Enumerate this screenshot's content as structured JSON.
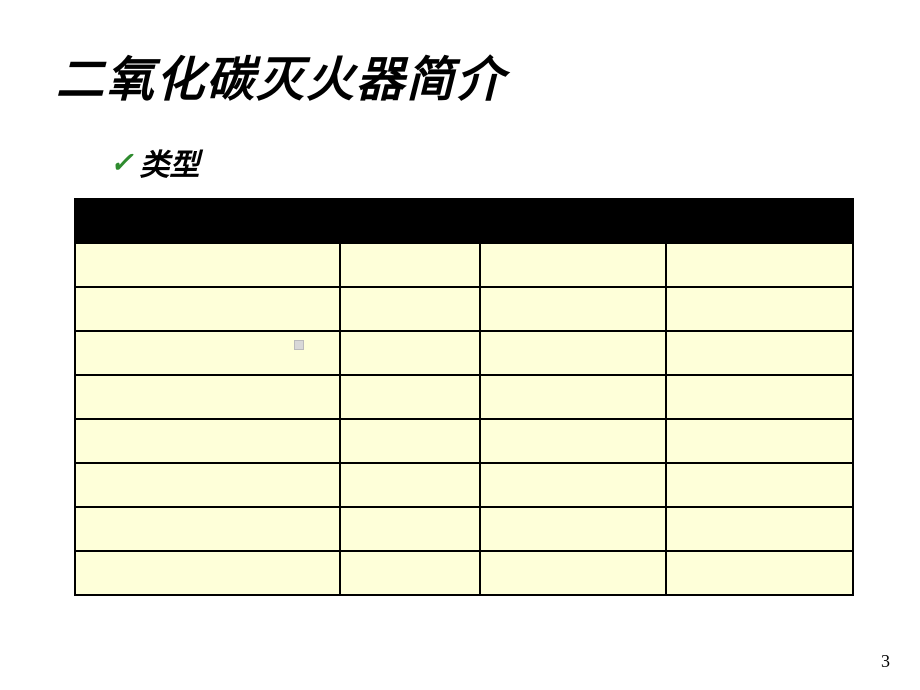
{
  "title": "二氧化碳灭火器简介",
  "subtitle": "类型",
  "table": {
    "header_bg": "#000000",
    "cell_bg": "#feffd9",
    "border_color": "#000000",
    "columns": [
      "",
      "",
      "",
      ""
    ],
    "rows": [
      [
        "",
        "",
        "",
        ""
      ],
      [
        "",
        "",
        "",
        ""
      ],
      [
        "",
        "",
        "",
        ""
      ],
      [
        "",
        "",
        "",
        ""
      ],
      [
        "",
        "",
        "",
        ""
      ],
      [
        "",
        "",
        "",
        ""
      ],
      [
        "",
        "",
        "",
        ""
      ],
      [
        "",
        "",
        "",
        ""
      ]
    ]
  },
  "page_number": "3",
  "check_color": "#2e8b2e"
}
